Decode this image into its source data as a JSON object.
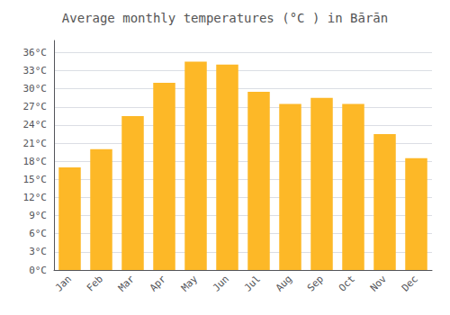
{
  "chart_data": {
    "type": "bar",
    "title": "Average monthly temperatures (°C ) in Bārān",
    "categories": [
      "Jan",
      "Feb",
      "Mar",
      "Apr",
      "May",
      "Jun",
      "Jul",
      "Aug",
      "Sep",
      "Oct",
      "Nov",
      "Dec"
    ],
    "values": [
      17.0,
      20.0,
      25.5,
      31.0,
      34.5,
      34.0,
      29.5,
      27.5,
      28.5,
      27.5,
      22.5,
      18.5
    ],
    "color": "#FDB827",
    "ylim": [
      0,
      38
    ],
    "yticks": [
      {
        "value": 0,
        "label": "0°C"
      },
      {
        "value": 3,
        "label": "3°C"
      },
      {
        "value": 6,
        "label": "6°C"
      },
      {
        "value": 9,
        "label": "9°C"
      },
      {
        "value": 12,
        "label": "12°C"
      },
      {
        "value": 15,
        "label": "15°C"
      },
      {
        "value": 18,
        "label": "18°C"
      },
      {
        "value": 21,
        "label": "21°C"
      },
      {
        "value": 24,
        "label": "24°C"
      },
      {
        "value": 27,
        "label": "27°C"
      },
      {
        "value": 30,
        "label": "30°C"
      },
      {
        "value": 33,
        "label": "33°C"
      },
      {
        "value": 36,
        "label": "36°C"
      }
    ],
    "grid": true
  }
}
